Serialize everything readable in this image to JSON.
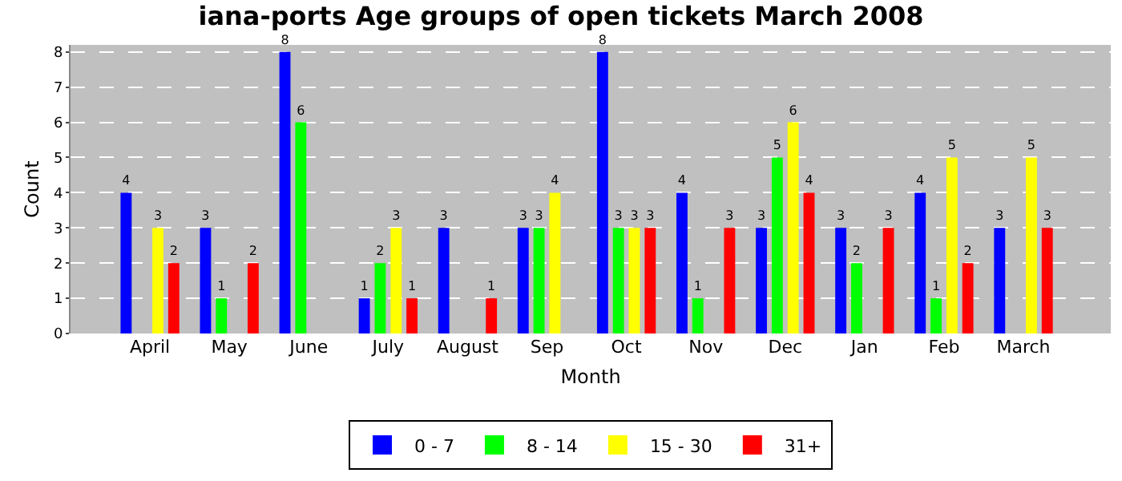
{
  "chart_data": {
    "type": "bar",
    "title": "iana-ports Age groups of open tickets March 2008",
    "xlabel": "Month",
    "ylabel": "Count",
    "categories": [
      "April",
      "May",
      "June",
      "July",
      "August",
      "Sep",
      "Oct",
      "Nov",
      "Dec",
      "Jan",
      "Feb",
      "March"
    ],
    "series": [
      {
        "name": "0 - 7",
        "color": "#0000ff",
        "values": [
          4,
          3,
          8,
          1,
          3,
          3,
          8,
          4,
          3,
          3,
          4,
          3
        ],
        "value_labels": [
          "4",
          "3",
          "8",
          "1",
          "3",
          "3",
          "8",
          "4",
          "3",
          "3",
          "4",
          "3"
        ]
      },
      {
        "name": "8 - 14",
        "color": "#00ff00",
        "values": [
          0,
          1,
          6,
          2,
          0,
          3,
          3,
          1,
          5,
          2,
          1,
          0
        ],
        "value_labels": [
          null,
          "1",
          "6",
          "2",
          null,
          "3",
          "3",
          "1",
          "5",
          "2",
          "1",
          null
        ]
      },
      {
        "name": "15 - 30",
        "color": "#ffff00",
        "values": [
          3,
          0,
          0,
          3,
          0,
          4,
          3,
          0,
          6,
          0,
          5,
          5
        ],
        "value_labels": [
          "3",
          null,
          null,
          "3",
          null,
          "4",
          "3",
          null,
          "6",
          null,
          "5",
          "5"
        ]
      },
      {
        "name": "31+",
        "color": "#ff0000",
        "values": [
          2,
          2,
          0,
          1,
          1,
          0,
          3,
          3,
          4,
          3,
          2,
          3
        ],
        "value_labels": [
          "2",
          "2",
          null,
          "1",
          "1",
          null,
          "3",
          "3",
          "4",
          "3",
          "2",
          "3"
        ]
      }
    ],
    "ylim": [
      0,
      8.2
    ],
    "yticks": [
      0,
      1,
      2,
      3,
      4,
      5,
      6,
      7,
      8
    ],
    "grid": "y",
    "legend": "bottom"
  }
}
